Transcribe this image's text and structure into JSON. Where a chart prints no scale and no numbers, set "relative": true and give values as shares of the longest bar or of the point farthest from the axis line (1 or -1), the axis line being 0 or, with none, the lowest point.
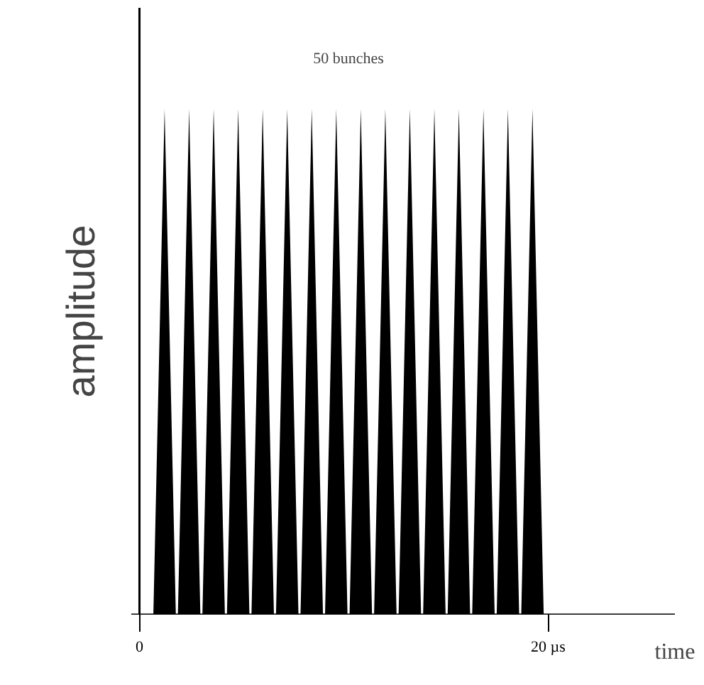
{
  "chart_data": {
    "type": "area",
    "relative": true,
    "xlabel": "time",
    "ylabel": "amplitude",
    "annotations": [
      "50 bunches"
    ],
    "xlim": [
      -0.4,
      26.2
    ],
    "xticks": [
      {
        "value": 0,
        "label": "0"
      },
      {
        "value": 20,
        "label": "20 µs"
      }
    ],
    "series": [
      {
        "color": "#000000",
        "x": [
          0.68,
          1.23,
          1.78,
          1.88,
          2.43,
          2.98,
          3.08,
          3.63,
          4.18,
          4.28,
          4.83,
          5.38,
          5.48,
          6.03,
          6.58,
          6.68,
          7.23,
          7.78,
          7.88,
          8.43,
          8.98,
          9.08,
          9.63,
          10.18,
          10.28,
          10.83,
          11.38,
          11.48,
          12.03,
          12.58,
          12.68,
          13.23,
          13.78,
          13.88,
          14.43,
          14.98,
          15.08,
          15.63,
          16.18,
          16.28,
          16.83,
          17.38,
          17.48,
          18.03,
          18.58,
          18.68,
          19.23,
          19.78
        ],
        "values": [
          0,
          1,
          0,
          0,
          1,
          0,
          0,
          1,
          0,
          0,
          1,
          0,
          0,
          1,
          0,
          0,
          1,
          0,
          0,
          1,
          0,
          0,
          1,
          0,
          0,
          1,
          0,
          0,
          1,
          0,
          0,
          1,
          0,
          0,
          1,
          0,
          0,
          1,
          0,
          0,
          1,
          0,
          0,
          1,
          0,
          0,
          1,
          0
        ]
      }
    ]
  }
}
